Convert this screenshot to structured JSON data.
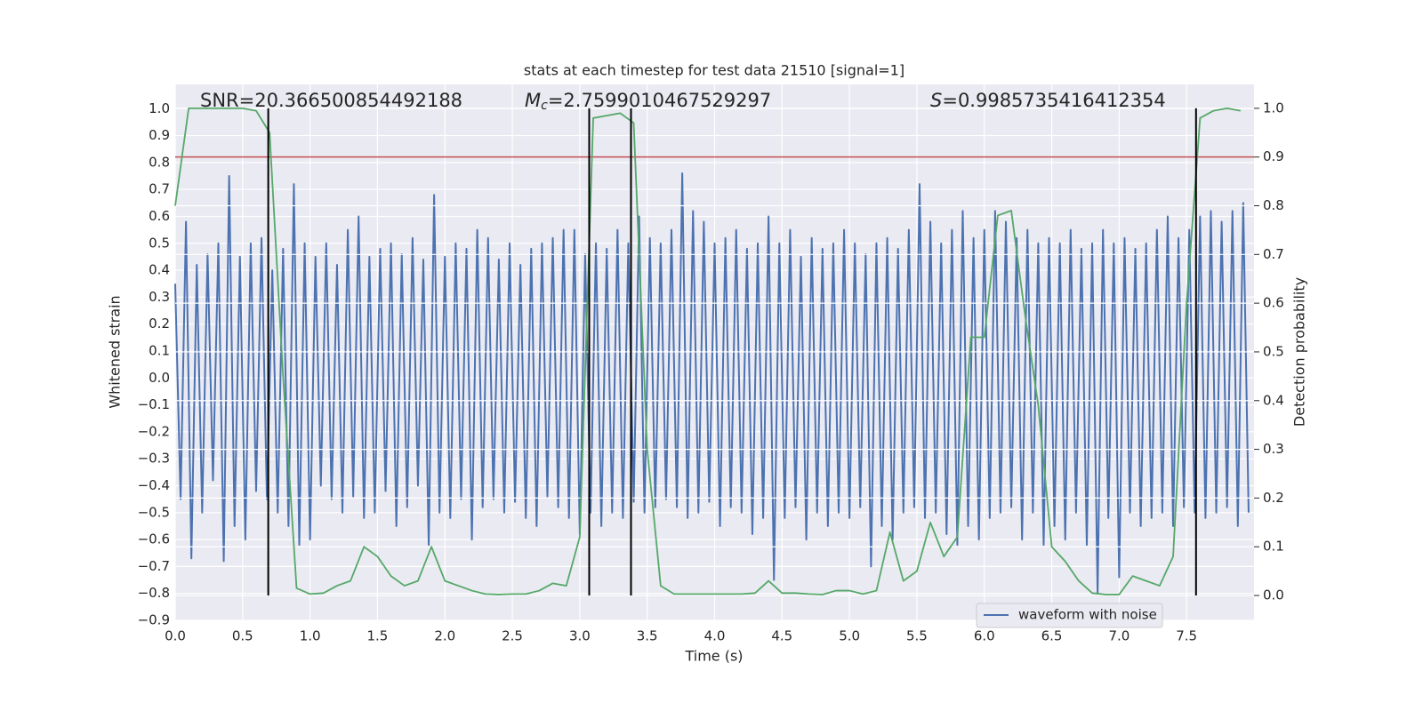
{
  "chart_data": {
    "type": "line",
    "title": "stats at each timestep for test data 21510 [signal=1]",
    "xlabel": "Time (s)",
    "ylabel": "Whitened strain",
    "y2label": "Detection probability",
    "annotations": [
      {
        "text": "SNR=20.366500854492188"
      },
      {
        "symbol": "M",
        "subscript": "c",
        "text": "=2.7599010467529297"
      },
      {
        "symbol": "S",
        "text": "=0.9985735416412354"
      }
    ],
    "xlim": [
      0,
      8.0
    ],
    "ylim": [
      -0.9,
      1.09
    ],
    "y2lim": [
      -0.051,
      1.049
    ],
    "xticks": [
      {
        "value": 0,
        "label": "0.0"
      },
      {
        "value": 0.5,
        "label": "0.5"
      },
      {
        "value": 1,
        "label": "1.0"
      },
      {
        "value": 1.5,
        "label": "1.5"
      },
      {
        "value": 2,
        "label": "2.0"
      },
      {
        "value": 2.5,
        "label": "2.5"
      },
      {
        "value": 3,
        "label": "3.0"
      },
      {
        "value": 3.5,
        "label": "3.5"
      },
      {
        "value": 4,
        "label": "4.0"
      },
      {
        "value": 4.5,
        "label": "4.5"
      },
      {
        "value": 5,
        "label": "5.0"
      },
      {
        "value": 5.5,
        "label": "5.5"
      },
      {
        "value": 6,
        "label": "6.0"
      },
      {
        "value": 6.5,
        "label": "6.5"
      },
      {
        "value": 7,
        "label": "7.0"
      },
      {
        "value": 7.5,
        "label": "7.5"
      }
    ],
    "yticks": [
      {
        "value": -0.9,
        "label": "−0.9"
      },
      {
        "value": -0.8,
        "label": "−0.8"
      },
      {
        "value": -0.7,
        "label": "−0.7"
      },
      {
        "value": -0.6,
        "label": "−0.6"
      },
      {
        "value": -0.5,
        "label": "−0.5"
      },
      {
        "value": -0.4,
        "label": "−0.4"
      },
      {
        "value": -0.3,
        "label": "−0.3"
      },
      {
        "value": -0.2,
        "label": "−0.2"
      },
      {
        "value": -0.1,
        "label": "−0.1"
      },
      {
        "value": 0,
        "label": "0.0"
      },
      {
        "value": 0.1,
        "label": "0.1"
      },
      {
        "value": 0.2,
        "label": "0.2"
      },
      {
        "value": 0.3,
        "label": "0.3"
      },
      {
        "value": 0.4,
        "label": "0.4"
      },
      {
        "value": 0.5,
        "label": "0.5"
      },
      {
        "value": 0.6,
        "label": "0.6"
      },
      {
        "value": 0.7,
        "label": "0.7"
      },
      {
        "value": 0.8,
        "label": "0.8"
      },
      {
        "value": 0.9,
        "label": "0.9"
      },
      {
        "value": 1,
        "label": "1.0"
      }
    ],
    "y2ticks": [
      {
        "value": 0,
        "label": "0.0"
      },
      {
        "value": 0.1,
        "label": "0.1"
      },
      {
        "value": 0.2,
        "label": "0.2"
      },
      {
        "value": 0.3,
        "label": "0.3"
      },
      {
        "value": 0.4,
        "label": "0.4"
      },
      {
        "value": 0.5,
        "label": "0.5"
      },
      {
        "value": 0.6,
        "label": "0.6"
      },
      {
        "value": 0.7,
        "label": "0.7"
      },
      {
        "value": 0.8,
        "label": "0.8"
      },
      {
        "value": 0.9,
        "label": "0.9"
      },
      {
        "value": 1,
        "label": "1.0"
      }
    ],
    "grid": true,
    "legend": "lower right",
    "series": [
      {
        "name": "waveform with noise",
        "color": "#4c72b0",
        "axis": "y",
        "x": [
          0,
          0.04,
          0.08,
          0.12,
          0.16,
          0.2,
          0.24,
          0.28,
          0.32,
          0.36,
          0.4,
          0.44,
          0.48,
          0.52,
          0.56,
          0.6,
          0.64,
          0.68,
          0.72,
          0.76,
          0.8,
          0.84,
          0.88,
          0.92,
          0.96,
          1,
          1.04,
          1.08,
          1.12,
          1.16,
          1.2,
          1.24,
          1.28,
          1.32,
          1.36,
          1.4,
          1.44,
          1.48,
          1.52,
          1.56,
          1.6,
          1.64,
          1.68,
          1.72,
          1.76,
          1.8,
          1.84,
          1.88,
          1.92,
          1.96,
          2,
          2.04,
          2.08,
          2.12,
          2.16,
          2.2,
          2.24,
          2.28,
          2.32,
          2.36,
          2.4,
          2.44,
          2.48,
          2.52,
          2.56,
          2.6,
          2.64,
          2.68,
          2.72,
          2.76,
          2.8,
          2.84,
          2.88,
          2.92,
          2.96,
          3,
          3.04,
          3.08,
          3.12,
          3.16,
          3.2,
          3.24,
          3.28,
          3.32,
          3.36,
          3.4,
          3.44,
          3.48,
          3.52,
          3.56,
          3.6,
          3.64,
          3.68,
          3.72,
          3.76,
          3.8,
          3.84,
          3.88,
          3.92,
          3.96,
          4,
          4.04,
          4.08,
          4.12,
          4.16,
          4.2,
          4.24,
          4.28,
          4.32,
          4.36,
          4.4,
          4.44,
          4.48,
          4.52,
          4.56,
          4.6,
          4.64,
          4.68,
          4.72,
          4.76,
          4.8,
          4.84,
          4.88,
          4.92,
          4.96,
          5,
          5.04,
          5.08,
          5.12,
          5.16,
          5.2,
          5.24,
          5.28,
          5.32,
          5.36,
          5.4,
          5.44,
          5.48,
          5.52,
          5.56,
          5.6,
          5.64,
          5.68,
          5.72,
          5.76,
          5.8,
          5.84,
          5.88,
          5.92,
          5.96,
          6,
          6.04,
          6.08,
          6.12,
          6.16,
          6.2,
          6.24,
          6.28,
          6.32,
          6.36,
          6.4,
          6.44,
          6.48,
          6.52,
          6.56,
          6.6,
          6.64,
          6.68,
          6.72,
          6.76,
          6.8,
          6.84,
          6.88,
          6.92,
          6.96,
          7,
          7.04,
          7.08,
          7.12,
          7.16,
          7.2,
          7.24,
          7.28,
          7.32,
          7.36,
          7.4,
          7.44,
          7.48,
          7.52,
          7.56,
          7.6,
          7.64,
          7.68,
          7.72,
          7.76,
          7.8,
          7.84,
          7.88,
          7.92,
          7.96
        ],
        "values": [
          0.35,
          -0.45,
          0.58,
          -0.67,
          0.42,
          -0.5,
          0.46,
          -0.38,
          0.5,
          -0.68,
          0.75,
          -0.55,
          0.45,
          -0.6,
          0.5,
          -0.42,
          0.52,
          -0.45,
          0.4,
          -0.5,
          0.48,
          -0.55,
          0.72,
          -0.62,
          0.5,
          -0.6,
          0.45,
          -0.4,
          0.5,
          -0.45,
          0.42,
          -0.5,
          0.55,
          -0.44,
          0.6,
          -0.52,
          0.45,
          -0.5,
          0.48,
          -0.42,
          0.5,
          -0.55,
          0.46,
          -0.48,
          0.52,
          -0.4,
          0.44,
          -0.62,
          0.68,
          -0.5,
          0.45,
          -0.52,
          0.5,
          -0.45,
          0.48,
          -0.6,
          0.55,
          -0.48,
          0.52,
          -0.45,
          0.44,
          -0.5,
          0.5,
          -0.46,
          0.42,
          -0.52,
          0.48,
          -0.55,
          0.5,
          -0.44,
          0.52,
          -0.48,
          0.55,
          -0.52,
          0.55,
          -0.58,
          0.46,
          -0.5,
          0.5,
          -0.55,
          0.48,
          -0.5,
          0.55,
          -0.52,
          0.5,
          -0.46,
          0.6,
          -0.5,
          0.52,
          -0.48,
          0.5,
          -0.45,
          0.55,
          -0.48,
          0.76,
          -0.52,
          0.62,
          -0.5,
          0.58,
          -0.46,
          0.5,
          -0.55,
          0.52,
          -0.48,
          0.55,
          -0.5,
          0.48,
          -0.58,
          0.5,
          -0.52,
          0.6,
          -0.75,
          0.5,
          -0.52,
          0.55,
          -0.48,
          0.45,
          -0.6,
          0.52,
          -0.5,
          0.48,
          -0.55,
          0.5,
          -0.5,
          0.55,
          -0.52,
          0.5,
          -0.48,
          0.46,
          -0.7,
          0.5,
          -0.55,
          0.52,
          -0.6,
          0.48,
          -0.5,
          0.55,
          -0.48,
          0.72,
          -0.52,
          0.58,
          -0.5,
          0.5,
          -0.58,
          0.55,
          -0.62,
          0.62,
          -0.55,
          0.52,
          -0.6,
          0.55,
          -0.52,
          0.62,
          -0.5,
          0.58,
          -0.48,
          0.52,
          -0.6,
          0.55,
          -0.5,
          0.5,
          -0.62,
          0.52,
          -0.55,
          0.5,
          -0.6,
          0.55,
          -0.5,
          0.48,
          -0.62,
          0.5,
          -0.8,
          0.55,
          -0.52,
          0.5,
          -0.74,
          0.52,
          -0.5,
          0.48,
          -0.55,
          0.5,
          -0.52,
          0.55,
          -0.5,
          0.6,
          -0.55,
          0.52,
          -0.48,
          0.55,
          -0.5,
          0.6,
          -0.52,
          0.62,
          -0.5,
          0.58,
          -0.48,
          0.62,
          -0.55,
          0.65,
          -0.5
        ]
      },
      {
        "color": "#55a868",
        "axis": "y2",
        "x": [
          0,
          0.1,
          0.2,
          0.3,
          0.4,
          0.5,
          0.6,
          0.7,
          0.8,
          0.9,
          1,
          1.1,
          1.2,
          1.3,
          1.4,
          1.5,
          1.6,
          1.7,
          1.8,
          1.9,
          2,
          2.1,
          2.2,
          2.3,
          2.4,
          2.5,
          2.6,
          2.7,
          2.8,
          2.9,
          3,
          3.1,
          3.2,
          3.3,
          3.4,
          3.5,
          3.6,
          3.7,
          3.8,
          3.9,
          4,
          4.1,
          4.2,
          4.3,
          4.4,
          4.5,
          4.6,
          4.7,
          4.8,
          4.9,
          5,
          5.1,
          5.2,
          5.3,
          5.4,
          5.5,
          5.6,
          5.7,
          5.8,
          5.9,
          6,
          6.1,
          6.2,
          6.3,
          6.4,
          6.5,
          6.6,
          6.7,
          6.8,
          6.9,
          7,
          7.1,
          7.2,
          7.3,
          7.4,
          7.5,
          7.6,
          7.7,
          7.8,
          7.9
        ],
        "values": [
          0.8,
          1.0,
          1.0,
          1.0,
          1.0,
          1.0,
          0.995,
          0.95,
          0.45,
          0.015,
          0.003,
          0.005,
          0.02,
          0.03,
          0.1,
          0.08,
          0.04,
          0.02,
          0.03,
          0.1,
          0.03,
          0.02,
          0.01,
          0.003,
          0.002,
          0.003,
          0.003,
          0.01,
          0.025,
          0.02,
          0.12,
          0.98,
          0.985,
          0.99,
          0.97,
          0.3,
          0.02,
          0.003,
          0.003,
          0.003,
          0.003,
          0.003,
          0.003,
          0.005,
          0.03,
          0.005,
          0.005,
          0.003,
          0.002,
          0.01,
          0.01,
          0.003,
          0.01,
          0.13,
          0.03,
          0.05,
          0.15,
          0.08,
          0.12,
          0.53,
          0.53,
          0.78,
          0.79,
          0.58,
          0.39,
          0.1,
          0.07,
          0.03,
          0.005,
          0.002,
          0.002,
          0.04,
          0.03,
          0.02,
          0.08,
          0.6,
          0.98,
          0.995,
          1.0,
          0.995
        ]
      }
    ],
    "vlines": {
      "color": "#000000",
      "axis": "y2",
      "span": [
        0,
        1.0
      ],
      "values": [
        0.69,
        3.07,
        3.38,
        7.57
      ]
    },
    "hline": {
      "color": "#c44e52",
      "axis": "y2",
      "value": 0.9
    }
  }
}
